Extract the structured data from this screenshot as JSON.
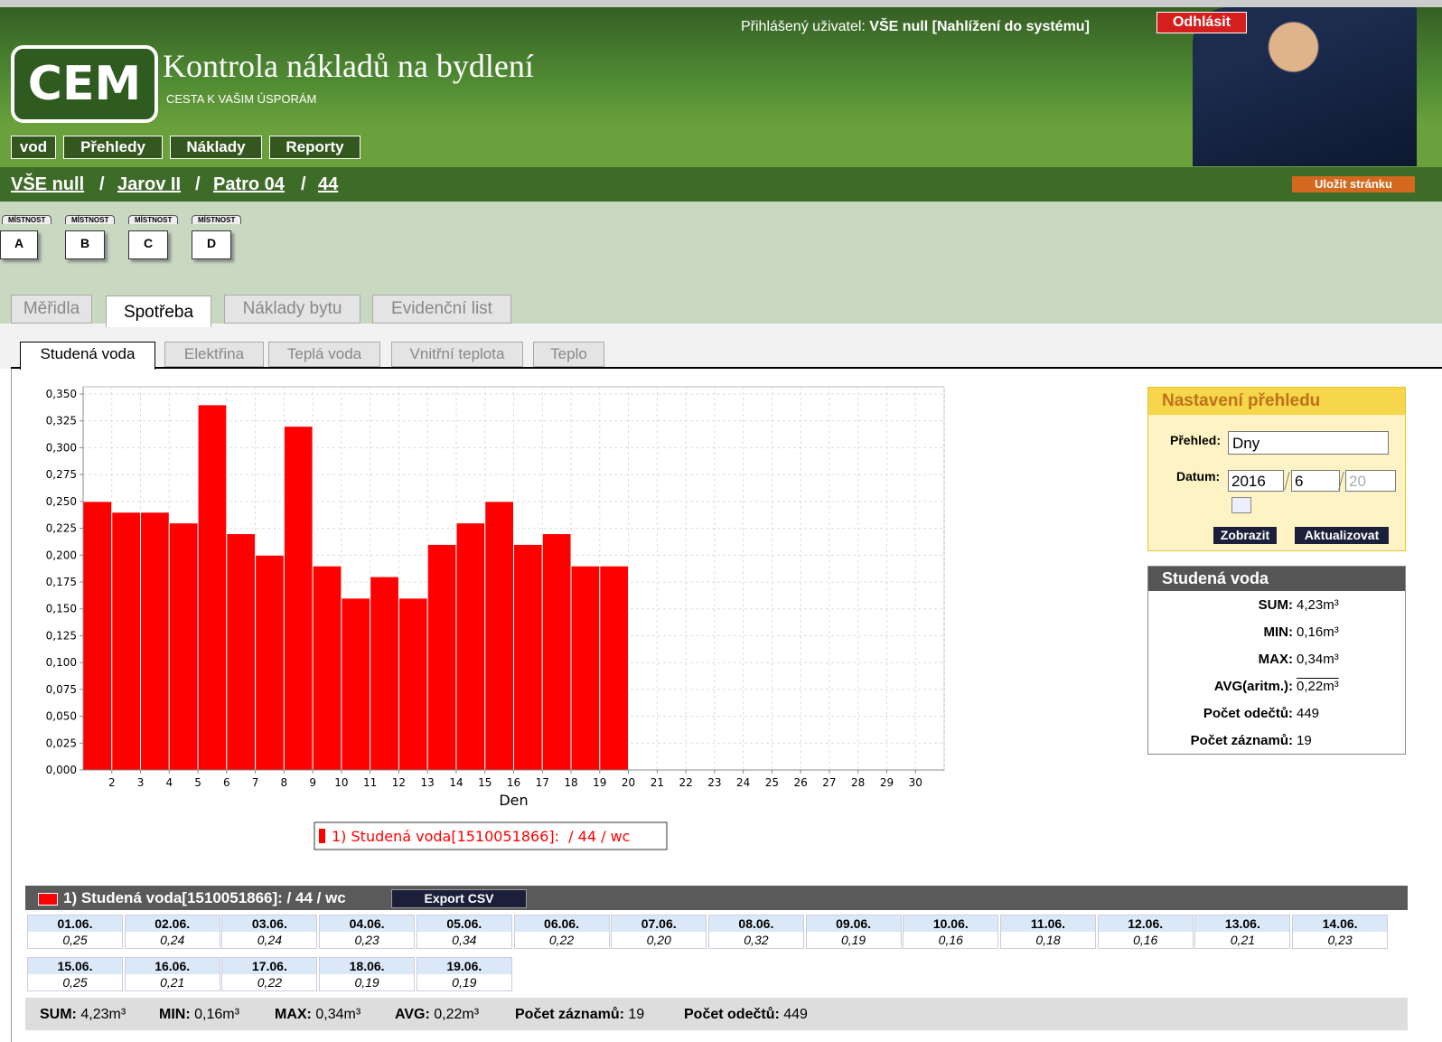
{
  "header": {
    "user_label": "Přihlášený uživatel:",
    "user": "VŠE null [Nahlížení do systému]",
    "logout": "Odhlásit",
    "logo": "CEM",
    "title": "Kontrola nákladů na bydlení",
    "subtitle": "CESTA K VAŠIM ÚSPORÁM"
  },
  "nav": [
    "vod",
    "Přehledy",
    "Náklady",
    "Reporty"
  ],
  "breadcrumb": {
    "items": [
      "VŠE null",
      "Jarov II",
      "Patro 04",
      "44"
    ],
    "separator": "/"
  },
  "save_button": "Uložit stránku",
  "rooms": [
    {
      "tag": "MÍSTNOST",
      "label": "A"
    },
    {
      "tag": "MÍSTNOST",
      "label": "B"
    },
    {
      "tag": "MÍSTNOST",
      "label": "C"
    },
    {
      "tag": "MÍSTNOST",
      "label": "D"
    }
  ],
  "tabs": [
    "Měřidla",
    "Spotřeba",
    "Náklady bytu",
    "Evidenční list"
  ],
  "active_tab": 1,
  "subtabs": [
    "Studená voda",
    "Elektřina",
    "Teplá voda",
    "Vnitřní teplota",
    "Teplo"
  ],
  "active_subtab": 0,
  "chart_data": {
    "type": "bar",
    "xlabel": "Den",
    "categories": [
      null,
      2,
      3,
      4,
      5,
      6,
      7,
      8,
      9,
      10,
      11,
      12,
      13,
      14,
      15,
      16,
      17,
      18,
      19,
      20,
      21,
      22,
      23,
      24,
      25,
      26,
      27,
      28,
      29,
      30
    ],
    "series": [
      {
        "name": "1) Studená voda[1510051866]:  / 44 / wc",
        "color": "#ff0000",
        "values": [
          0.25,
          0.24,
          0.24,
          0.23,
          0.34,
          0.22,
          0.2,
          0.32,
          0.19,
          0.16,
          0.18,
          0.16,
          0.21,
          0.23,
          0.25,
          0.21,
          0.22,
          0.19,
          0.19,
          null,
          null,
          null,
          null,
          null,
          null,
          null,
          null,
          null,
          null,
          null
        ]
      }
    ],
    "ylim": [
      0,
      0.35
    ],
    "yticks": [
      {
        "value": 0,
        "label": "0,000"
      },
      {
        "value": 0.025,
        "label": "0,025"
      },
      {
        "value": 0.05,
        "label": "0,050"
      },
      {
        "value": 0.075,
        "label": "0,075"
      },
      {
        "value": 0.1,
        "label": "0,100"
      },
      {
        "value": 0.125,
        "label": "0,125"
      },
      {
        "value": 0.15,
        "label": "0,150"
      },
      {
        "value": 0.175,
        "label": "0,175"
      },
      {
        "value": 0.2,
        "label": "0,200"
      },
      {
        "value": 0.225,
        "label": "0,225"
      },
      {
        "value": 0.25,
        "label": "0,250"
      },
      {
        "value": 0.275,
        "label": "0,275"
      },
      {
        "value": 0.3,
        "label": "0,300"
      },
      {
        "value": 0.325,
        "label": "0,325"
      },
      {
        "value": 0.35,
        "label": "0,350"
      }
    ],
    "grid": true
  },
  "settings": {
    "title": "Nastavení přehledu",
    "overview_label": "Přehled:",
    "overview": "Dny",
    "date_label": "Datum:",
    "date": [
      "2016",
      "6",
      "20"
    ],
    "buttons": [
      "Zobrazit",
      "Aktualizovat"
    ]
  },
  "summary": {
    "title": "Studená voda",
    "rows": [
      {
        "label": "SUM:",
        "value": "4,23m³"
      },
      {
        "label": "MIN:",
        "value": "0,16m³"
      },
      {
        "label": "MAX:",
        "value": "0,34m³"
      },
      {
        "label": "AVG(aritm.):",
        "value": "0,22m³"
      },
      {
        "label": "Počet odečtů:",
        "value": "449"
      },
      {
        "label": "Počet záznamů:",
        "value": "19"
      }
    ]
  },
  "table": {
    "title": "1) Studená voda[1510051866]: / 44 / wc",
    "export": "Export CSV",
    "cells": [
      {
        "date": "01.06.",
        "value": "0,25"
      },
      {
        "date": "02.06.",
        "value": "0,24"
      },
      {
        "date": "03.06.",
        "value": "0,24"
      },
      {
        "date": "04.06.",
        "value": "0,23"
      },
      {
        "date": "05.06.",
        "value": "0,34"
      },
      {
        "date": "06.06.",
        "value": "0,22"
      },
      {
        "date": "07.06.",
        "value": "0,20"
      },
      {
        "date": "08.06.",
        "value": "0,32"
      },
      {
        "date": "09.06.",
        "value": "0,19"
      },
      {
        "date": "10.06.",
        "value": "0,16"
      },
      {
        "date": "11.06.",
        "value": "0,18"
      },
      {
        "date": "12.06.",
        "value": "0,16"
      },
      {
        "date": "13.06.",
        "value": "0,21"
      },
      {
        "date": "14.06.",
        "value": "0,23"
      },
      {
        "date": "15.06.",
        "value": "0,25"
      },
      {
        "date": "16.06.",
        "value": "0,21"
      },
      {
        "date": "17.06.",
        "value": "0,22"
      },
      {
        "date": "18.06.",
        "value": "0,19"
      },
      {
        "date": "19.06.",
        "value": "0,19"
      }
    ],
    "footer": [
      {
        "label": "SUM:",
        "value": "4,23m³"
      },
      {
        "label": "MIN:",
        "value": "0,16m³"
      },
      {
        "label": "MAX:",
        "value": "0,34m³"
      },
      {
        "label": "AVG:",
        "value": "0,22m³"
      },
      {
        "label": "Počet záznamů:",
        "value": "19"
      },
      {
        "label": "Počet odečtů:",
        "value": "449"
      }
    ]
  }
}
